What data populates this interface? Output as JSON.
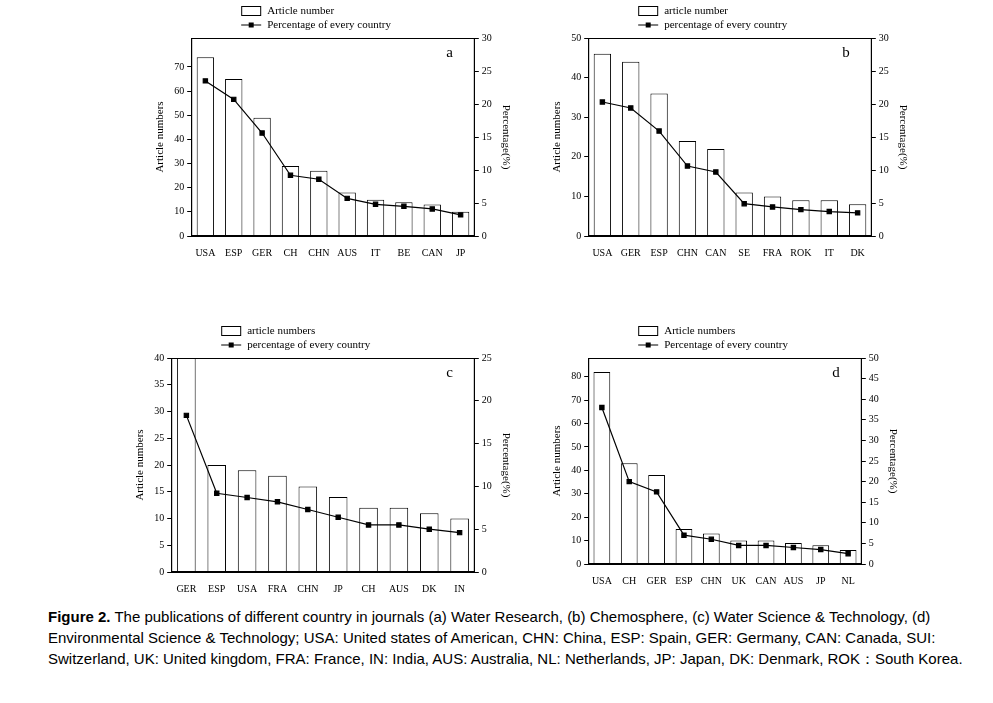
{
  "caption": {
    "label": "Figure 2.",
    "text": "The publications of different country in journals (a) Water Research, (b) Chemosphere, (c) Water Science & Technology, (d) Environmental Science & Technology; USA: United states of American, CHN: China, ESP: Spain, GER: Germany, CAN: Canada, SUI: Switzerland, UK: United kingdom, FRA: France, IN: India, AUS: Australia, NL: Netherlands, JP: Japan, DK: Denmark, ROK：South Korea."
  },
  "chart_data": [
    {
      "type": "bar",
      "annotations": [
        "a"
      ],
      "ylabel": "Article numbers",
      "y2label": "Percentage(%)",
      "categories": [
        "USA",
        "ESP",
        "GER",
        "CH",
        "CHN",
        "AUS",
        "IT",
        "BE",
        "CAN",
        "JP"
      ],
      "series": [
        {
          "name": "Article number",
          "type": "bar",
          "color": "#ffffff",
          "values": [
            74,
            65,
            49,
            29,
            27,
            18,
            15,
            14,
            13,
            10
          ]
        },
        {
          "name": "Percentage of every country",
          "type": "line",
          "axis": "y2",
          "color": "#000000",
          "marker": "square",
          "line_style": "solid",
          "values": [
            23.5,
            20.7,
            15.6,
            9.2,
            8.6,
            5.7,
            4.8,
            4.5,
            4.1,
            3.2
          ]
        }
      ],
      "ylim": [
        0,
        82
      ],
      "yticks": [
        0,
        10,
        20,
        30,
        40,
        50,
        60,
        70
      ],
      "y2lim": [
        0,
        30
      ],
      "y2ticks": [
        0,
        5,
        10,
        15,
        20,
        25,
        30
      ],
      "grid": false,
      "legend": "top"
    },
    {
      "type": "bar",
      "annotations": [
        "b"
      ],
      "ylabel": "Article numbers",
      "y2label": "Percentage(%)",
      "categories": [
        "USA",
        "GER",
        "ESP",
        "CHN",
        "CAN",
        "SE",
        "FRA",
        "ROK",
        "IT",
        "DK"
      ],
      "series": [
        {
          "name": "article number",
          "type": "bar",
          "color": "#ffffff",
          "values": [
            46,
            44,
            36,
            24,
            22,
            11,
            10,
            9,
            9,
            8
          ]
        },
        {
          "name": "percentage of every country",
          "type": "line",
          "axis": "y2",
          "color": "#000000",
          "marker": "square",
          "line_style": "solid",
          "values": [
            20.3,
            19.4,
            15.9,
            10.6,
            9.7,
            4.9,
            4.4,
            4.0,
            3.7,
            3.5
          ]
        }
      ],
      "ylim": [
        0,
        50
      ],
      "yticks": [
        0,
        10,
        20,
        30,
        40,
        50
      ],
      "y2lim": [
        0,
        30
      ],
      "y2ticks": [
        0,
        5,
        10,
        15,
        20,
        25,
        30
      ],
      "grid": false,
      "legend": "top"
    },
    {
      "type": "bar",
      "annotations": [
        "c"
      ],
      "ylabel": "Article numbers",
      "y2label": "Percentage(%)",
      "categories": [
        "GER",
        "ESP",
        "USA",
        "FRA",
        "CHN",
        "JP",
        "CH",
        "AUS",
        "DK",
        "IN"
      ],
      "series": [
        {
          "name": "article numbers",
          "type": "bar",
          "color": "#ffffff",
          "values": [
            40,
            20,
            19,
            18,
            16,
            14,
            12,
            12,
            11,
            10
          ]
        },
        {
          "name": "percentage of every country",
          "type": "line",
          "axis": "y2",
          "color": "#000000",
          "marker": "square",
          "line_style": "solid",
          "values": [
            18.3,
            9.2,
            8.7,
            8.2,
            7.3,
            6.4,
            5.5,
            5.5,
            5.0,
            4.6
          ]
        }
      ],
      "ylim": [
        0,
        40
      ],
      "yticks": [
        0,
        5,
        10,
        15,
        20,
        25,
        30,
        35,
        40
      ],
      "y2lim": [
        0,
        25
      ],
      "y2ticks": [
        0,
        5,
        10,
        15,
        20,
        25
      ],
      "grid": false,
      "legend": "top"
    },
    {
      "type": "bar",
      "annotations": [
        "d"
      ],
      "ylabel": "Article numbers",
      "y2label": "Percentage(%)",
      "categories": [
        "USA",
        "CH",
        "GER",
        "ESP",
        "CHN",
        "UK",
        "CAN",
        "AUS",
        "JP",
        "NL"
      ],
      "series": [
        {
          "name": "Article numbers",
          "type": "bar",
          "color": "#ffffff",
          "values": [
            82,
            43,
            38,
            15,
            13,
            10,
            10,
            9,
            8,
            6
          ]
        },
        {
          "name": "Percentage of every country",
          "type": "line",
          "axis": "y2",
          "color": "#000000",
          "marker": "square",
          "line_style": "solid",
          "values": [
            38,
            20,
            17.5,
            7,
            6,
            4.5,
            4.5,
            4,
            3.5,
            2.5
          ]
        }
      ],
      "ylim": [
        0,
        88
      ],
      "yticks": [
        0,
        10,
        20,
        30,
        40,
        50,
        60,
        70,
        80
      ],
      "y2lim": [
        0,
        50
      ],
      "y2ticks": [
        0,
        5,
        10,
        15,
        20,
        25,
        30,
        35,
        40,
        45,
        50
      ],
      "grid": false,
      "legend": "top"
    }
  ]
}
